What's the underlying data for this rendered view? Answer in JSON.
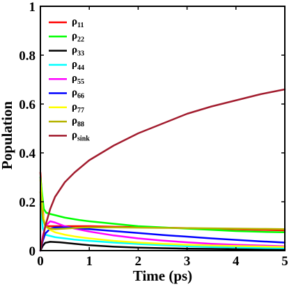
{
  "chart_data": {
    "type": "line",
    "title": "",
    "xlabel": "Time (ps)",
    "ylabel": "Population",
    "xlim": [
      0,
      5
    ],
    "ylim": [
      0,
      1
    ],
    "xticks": [
      0,
      1,
      2,
      3,
      4,
      5
    ],
    "yticks": [
      0,
      0.2,
      0.4,
      0.6,
      0.8,
      1
    ],
    "xtick_labels": [
      "0",
      "1",
      "2",
      "3",
      "4",
      "5"
    ],
    "ytick_labels": [
      "0",
      "0.2",
      "0.4",
      "0.6",
      "0.8",
      "1"
    ],
    "grid": false,
    "legend_position": "top-left",
    "series": [
      {
        "name": "ρ11",
        "base": "ρ",
        "sub": "11",
        "color": "#ff0000",
        "x": [
          0,
          0.03,
          0.07,
          0.12,
          0.2,
          0.3,
          0.5,
          0.8,
          1,
          1.5,
          2,
          2.5,
          3,
          3.5,
          4,
          4.5,
          5
        ],
        "y": [
          0.32,
          0.22,
          0.12,
          0.1,
          0.1,
          0.1,
          0.1,
          0.1,
          0.1,
          0.098,
          0.096,
          0.094,
          0.092,
          0.089,
          0.087,
          0.085,
          0.083
        ]
      },
      {
        "name": "ρ22",
        "base": "ρ",
        "sub": "22",
        "color": "#00ff00",
        "x": [
          0,
          0.03,
          0.07,
          0.12,
          0.2,
          0.3,
          0.5,
          0.8,
          1,
          1.5,
          2,
          2.5,
          3,
          3.5,
          4,
          4.5,
          5
        ],
        "y": [
          0.3,
          0.24,
          0.17,
          0.155,
          0.15,
          0.145,
          0.135,
          0.125,
          0.12,
          0.11,
          0.1,
          0.095,
          0.09,
          0.085,
          0.08,
          0.077,
          0.075
        ]
      },
      {
        "name": "ρ33",
        "base": "ρ",
        "sub": "33",
        "color": "#000000",
        "x": [
          0,
          0.05,
          0.1,
          0.2,
          0.4,
          0.7,
          1,
          1.5,
          2,
          2.5,
          3,
          3.5,
          4,
          4.5,
          5
        ],
        "y": [
          0,
          0.02,
          0.032,
          0.036,
          0.034,
          0.028,
          0.022,
          0.016,
          0.012,
          0.01,
          0.008,
          0.007,
          0.006,
          0.005,
          0.004
        ]
      },
      {
        "name": "ρ44",
        "base": "ρ",
        "sub": "44",
        "color": "#00ffff",
        "x": [
          0,
          0.05,
          0.1,
          0.2,
          0.3,
          0.5,
          0.7,
          1,
          1.5,
          2,
          2.5,
          3,
          3.5,
          4,
          4.5,
          5
        ],
        "y": [
          0.19,
          0.09,
          0.065,
          0.06,
          0.055,
          0.05,
          0.045,
          0.04,
          0.033,
          0.027,
          0.022,
          0.018,
          0.015,
          0.013,
          0.011,
          0.01
        ]
      },
      {
        "name": "ρ55",
        "base": "ρ",
        "sub": "55",
        "color": "#ff00ff",
        "x": [
          0,
          0.05,
          0.1,
          0.2,
          0.3,
          0.5,
          0.7,
          1,
          1.5,
          2,
          2.5,
          3,
          3.5,
          4,
          4.5,
          5
        ],
        "y": [
          0,
          0.06,
          0.1,
          0.12,
          0.115,
          0.1,
          0.09,
          0.078,
          0.062,
          0.05,
          0.041,
          0.034,
          0.028,
          0.024,
          0.021,
          0.018
        ]
      },
      {
        "name": "ρ66",
        "base": "ρ",
        "sub": "66",
        "color": "#0000ff",
        "x": [
          0,
          0.05,
          0.1,
          0.2,
          0.3,
          0.5,
          0.7,
          1,
          1.5,
          2,
          2.5,
          3,
          3.5,
          4,
          4.5,
          5
        ],
        "y": [
          0,
          0.04,
          0.07,
          0.09,
          0.095,
          0.095,
          0.093,
          0.088,
          0.08,
          0.072,
          0.064,
          0.057,
          0.05,
          0.044,
          0.038,
          0.033
        ]
      },
      {
        "name": "ρ77",
        "base": "ρ",
        "sub": "77",
        "color": "#ffff00",
        "x": [
          0,
          0.05,
          0.1,
          0.2,
          0.3,
          0.5,
          0.7,
          1,
          1.5,
          2,
          2.5,
          3,
          3.5,
          4,
          4.5,
          5
        ],
        "y": [
          0.29,
          0.15,
          0.1,
          0.085,
          0.075,
          0.065,
          0.058,
          0.05,
          0.04,
          0.033,
          0.028,
          0.024,
          0.021,
          0.019,
          0.017,
          0.015
        ]
      },
      {
        "name": "ρ88",
        "base": "ρ",
        "sub": "88",
        "color": "#b5b300",
        "x": [
          0,
          0.05,
          0.1,
          0.2,
          0.3,
          0.5,
          0.8,
          1,
          1.5,
          2,
          2.5,
          3,
          3.5,
          4,
          4.5,
          5
        ],
        "y": [
          0.24,
          0.13,
          0.1,
          0.09,
          0.088,
          0.09,
          0.094,
          0.095,
          0.095,
          0.094,
          0.093,
          0.092,
          0.091,
          0.09,
          0.089,
          0.088
        ]
      },
      {
        "name": "ρsink",
        "base": "ρ",
        "sub": "sink",
        "color": "#a21c2e",
        "x": [
          0,
          0.05,
          0.1,
          0.2,
          0.3,
          0.5,
          0.7,
          1,
          1.5,
          2,
          2.5,
          3,
          3.5,
          4,
          4.5,
          5
        ],
        "y": [
          0,
          0.05,
          0.1,
          0.17,
          0.22,
          0.28,
          0.32,
          0.37,
          0.43,
          0.48,
          0.52,
          0.56,
          0.59,
          0.615,
          0.64,
          0.66
        ]
      }
    ]
  }
}
